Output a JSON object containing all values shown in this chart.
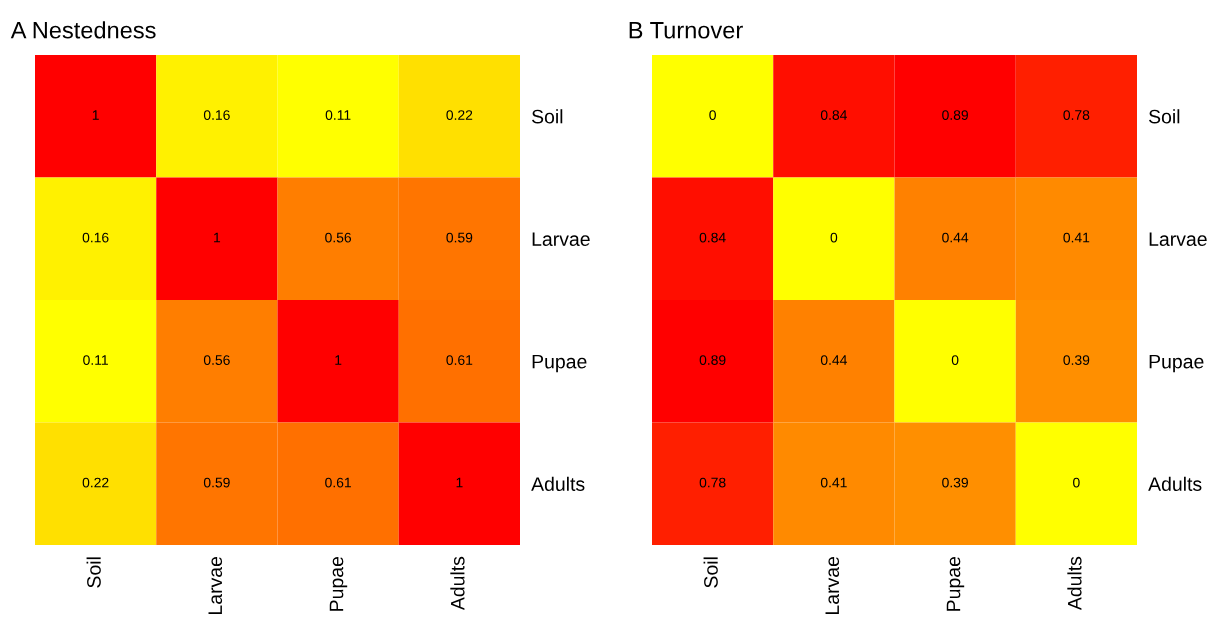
{
  "chart_data": [
    {
      "type": "heatmap",
      "title": "A Nestedness",
      "categories": [
        "Soil",
        "Larvae",
        "Pupae",
        "Adults"
      ],
      "y_categories": [
        "Soil",
        "Larvae",
        "Pupae",
        "Adults"
      ],
      "cells": [
        [
          1,
          0.16,
          0.11,
          0.22
        ],
        [
          0.16,
          1,
          0.56,
          0.59
        ],
        [
          0.11,
          0.56,
          1,
          0.61
        ],
        [
          0.22,
          0.59,
          0.61,
          1
        ]
      ],
      "data_labels": true
    },
    {
      "type": "heatmap",
      "title": "B Turnover",
      "categories": [
        "Soil",
        "Larvae",
        "Pupae",
        "Adults"
      ],
      "y_categories": [
        "Soil",
        "Larvae",
        "Pupae",
        "Adults"
      ],
      "cells": [
        [
          0,
          0.84,
          0.89,
          0.78
        ],
        [
          0.84,
          0,
          0.44,
          0.41
        ],
        [
          0.89,
          0.44,
          0,
          0.39
        ],
        [
          0.78,
          0.41,
          0.39,
          0
        ]
      ],
      "data_labels": true
    }
  ]
}
